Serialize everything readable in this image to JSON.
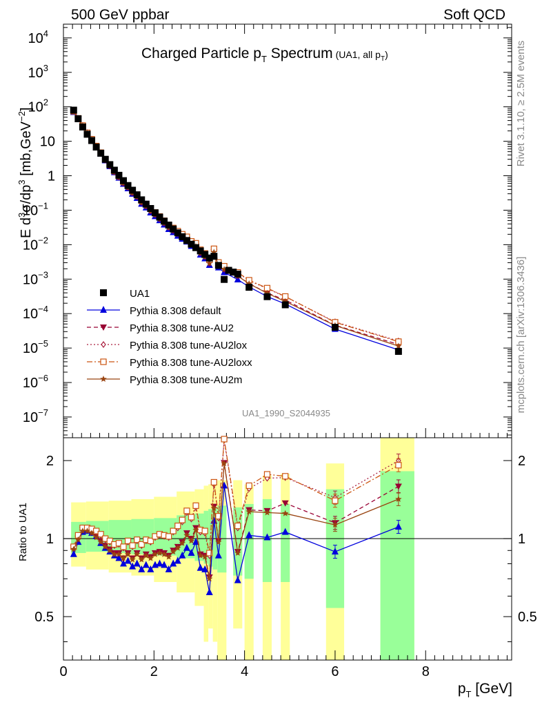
{
  "header": {
    "left": "500 GeV ppbar",
    "right": "Soft QCD",
    "side_top": "Rivet 3.1.10, ≥ 2.5M events",
    "side_bottom": "mcplots.cern.ch [arXiv:1306.3436]"
  },
  "chart_data": [
    {
      "type": "scatter",
      "title": "Charged Particle pT Spectrum",
      "subtitle": "(UA1, all pT)",
      "watermark": "UA1_1990_S2044935",
      "ylabel": "E d3σ/dp3 [mb,GeV-2]",
      "xlim": [
        0,
        9.9
      ],
      "ylim": [
        2.5e-08,
        25000
      ],
      "log_y": true,
      "yticks": [
        {
          "value": 10000.0,
          "label": "10",
          "exp": "4"
        },
        {
          "value": 1000.0,
          "label": "10",
          "exp": "3"
        },
        {
          "value": 100.0,
          "label": "10",
          "exp": "2"
        },
        {
          "value": 10,
          "label": "10",
          "exp": ""
        },
        {
          "value": 1,
          "label": "1",
          "exp": ""
        },
        {
          "value": 0.1,
          "label": "10",
          "exp": "−1"
        },
        {
          "value": 0.01,
          "label": "10",
          "exp": "−2"
        },
        {
          "value": 0.001,
          "label": "10",
          "exp": "−3"
        },
        {
          "value": 0.0001,
          "label": "10",
          "exp": "−4"
        },
        {
          "value": 1e-05,
          "label": "10",
          "exp": "−5"
        },
        {
          "value": 1e-06,
          "label": "10",
          "exp": "−6"
        },
        {
          "value": 1e-07,
          "label": "10",
          "exp": "−7"
        }
      ],
      "legend": {
        "position": "bottom-left",
        "entries": [
          {
            "label": "UA1",
            "color": "#000000",
            "marker": "square",
            "line": "none"
          },
          {
            "label": "Pythia 8.308 default",
            "color": "#0000dd",
            "marker": "triangle-up",
            "line": "solid"
          },
          {
            "label": "Pythia 8.308 tune-AU2",
            "color": "#990033",
            "marker": "triangle-down",
            "line": "dashed"
          },
          {
            "label": "Pythia 8.308 tune-AU2lox",
            "color": "#aa1f3f",
            "marker": "diamond-open",
            "line": "dotted"
          },
          {
            "label": "Pythia 8.308 tune-AU2loxx",
            "color": "#cc5511",
            "marker": "square-open",
            "line": "dashdot"
          },
          {
            "label": "Pythia 8.308 tune-AU2m",
            "color": "#994411",
            "marker": "star",
            "line": "solid"
          }
        ]
      },
      "data_points": [
        [
          0.225,
          80
        ],
        [
          0.325,
          45
        ],
        [
          0.425,
          26
        ],
        [
          0.525,
          16
        ],
        [
          0.625,
          10.5
        ],
        [
          0.725,
          6.8
        ],
        [
          0.825,
          4.5
        ],
        [
          0.925,
          3.0
        ],
        [
          1.025,
          2.1
        ],
        [
          1.125,
          1.45
        ],
        [
          1.225,
          1.03
        ],
        [
          1.325,
          0.72
        ],
        [
          1.425,
          0.52
        ],
        [
          1.525,
          0.38
        ],
        [
          1.625,
          0.28
        ],
        [
          1.725,
          0.2
        ],
        [
          1.825,
          0.15
        ],
        [
          1.925,
          0.112
        ],
        [
          2.025,
          0.084
        ],
        [
          2.125,
          0.063
        ],
        [
          2.225,
          0.048
        ],
        [
          2.325,
          0.037
        ],
        [
          2.425,
          0.0285
        ],
        [
          2.525,
          0.022
        ],
        [
          2.625,
          0.017
        ],
        [
          2.725,
          0.0132
        ],
        [
          2.825,
          0.0103
        ],
        [
          2.925,
          0.0082
        ],
        [
          3.025,
          0.0066
        ],
        [
          3.125,
          0.0052
        ],
        [
          3.225,
          0.0041
        ],
        [
          3.325,
          0.0046
        ],
        [
          3.425,
          0.0025
        ],
        [
          3.55,
          0.00098
        ],
        [
          3.65,
          0.0018
        ],
        [
          3.75,
          0.0016
        ],
        [
          3.85,
          0.0014
        ],
        [
          4.1,
          0.00058
        ],
        [
          4.5,
          0.00031
        ],
        [
          4.9,
          0.00018
        ],
        [
          6.0,
          4e-05
        ],
        [
          7.4,
          8e-06
        ]
      ],
      "ratio_panel": {
        "ylabel": "Ratio to UA1",
        "xlabel": "pT [GeV]",
        "xticks": [
          0,
          2,
          4,
          6,
          8
        ],
        "yticks": [
          0.5,
          1,
          2
        ],
        "ylim": [
          0.34,
          2.45
        ],
        "bands": [
          {
            "x0": 0.17,
            "x1": 0.5,
            "g_lo": 0.88,
            "g_hi": 1.16,
            "y_lo": 0.78,
            "y_hi": 1.38
          },
          {
            "x0": 0.5,
            "x1": 1.0,
            "g_lo": 0.89,
            "g_hi": 1.17,
            "y_lo": 0.76,
            "y_hi": 1.39
          },
          {
            "x0": 1.0,
            "x1": 1.5,
            "g_lo": 0.88,
            "g_hi": 1.18,
            "y_lo": 0.74,
            "y_hi": 1.4
          },
          {
            "x0": 1.5,
            "x1": 2.0,
            "g_lo": 0.87,
            "g_hi": 1.19,
            "y_lo": 0.72,
            "y_hi": 1.42
          },
          {
            "x0": 2.0,
            "x1": 2.5,
            "g_lo": 0.86,
            "g_hi": 1.2,
            "y_lo": 0.68,
            "y_hi": 1.45
          },
          {
            "x0": 2.5,
            "x1": 2.9,
            "g_lo": 0.84,
            "g_hi": 1.23,
            "y_lo": 0.62,
            "y_hi": 1.52
          },
          {
            "x0": 2.9,
            "x1": 3.1,
            "g_lo": 0.82,
            "g_hi": 1.25,
            "y_lo": 0.55,
            "y_hi": 1.55
          },
          {
            "x0": 3.1,
            "x1": 3.2,
            "g_lo": 0.8,
            "g_hi": 1.28,
            "y_lo": 0.4,
            "y_hi": 1.6
          },
          {
            "x0": 3.2,
            "x1": 3.3,
            "g_lo": 0.78,
            "g_hi": 1.3,
            "y_lo": 0.45,
            "y_hi": 1.62
          },
          {
            "x0": 3.3,
            "x1": 3.4,
            "g_lo": 0.76,
            "g_hi": 1.32,
            "y_lo": 0.4,
            "y_hi": 1.65
          },
          {
            "x0": 3.4,
            "x1": 3.6,
            "g_lo": 0.74,
            "g_hi": 1.34,
            "y_lo": 0.34,
            "y_hi": 1.68
          },
          {
            "x0": 3.75,
            "x1": 3.95,
            "g_lo": 0.72,
            "g_hi": 1.32,
            "y_lo": 0.45,
            "y_hi": 1.68
          },
          {
            "x0": 4.0,
            "x1": 4.2,
            "g_lo": 0.7,
            "g_hi": 1.36,
            "y_lo": 0.34,
            "y_hi": 1.62
          },
          {
            "x0": 4.4,
            "x1": 4.6,
            "g_lo": 0.68,
            "g_hi": 1.42,
            "y_lo": 0.34,
            "y_hi": 1.75
          },
          {
            "x0": 4.8,
            "x1": 5.0,
            "g_lo": 0.68,
            "g_hi": 1.36,
            "y_lo": 0.34,
            "y_hi": 1.78
          },
          {
            "x0": 5.8,
            "x1": 6.2,
            "g_lo": 0.54,
            "g_hi": 1.55,
            "y_lo": 0.34,
            "y_hi": 1.95
          },
          {
            "x0": 7.0,
            "x1": 7.75,
            "g_lo": 0.34,
            "g_hi": 1.82,
            "y_lo": 0.34,
            "y_hi": 2.45
          }
        ],
        "x": [
          0.225,
          0.325,
          0.425,
          0.525,
          0.625,
          0.725,
          0.825,
          0.925,
          1.025,
          1.125,
          1.225,
          1.325,
          1.425,
          1.525,
          1.625,
          1.725,
          1.825,
          1.925,
          2.025,
          2.125,
          2.225,
          2.325,
          2.425,
          2.525,
          2.625,
          2.725,
          2.825,
          2.925,
          3.025,
          3.125,
          3.225,
          3.325,
          3.425,
          3.55,
          3.85,
          4.1,
          4.5,
          4.9,
          6.0,
          7.4
        ],
        "series": [
          {
            "name": "Pythia 8.308 default",
            "values": [
              0.87,
              0.97,
              1.06,
              1.07,
              1.05,
              1.02,
              0.96,
              0.92,
              0.89,
              0.86,
              0.84,
              0.8,
              0.82,
              0.78,
              0.8,
              0.76,
              0.79,
              0.76,
              0.79,
              0.8,
              0.79,
              0.76,
              0.8,
              0.82,
              0.86,
              0.92,
              0.88,
              0.97,
              0.77,
              0.76,
              0.62,
              1.17,
              0.86,
              1.6,
              0.69,
              1.03,
              1.01,
              1.06,
              0.89,
              1.11
            ]
          },
          {
            "name": "Pythia 8.308 tune-AU2",
            "values": [
              0.92,
              1.0,
              1.08,
              1.08,
              1.06,
              1.02,
              0.98,
              0.94,
              0.91,
              0.88,
              0.88,
              0.84,
              0.88,
              0.84,
              0.88,
              0.84,
              0.87,
              0.85,
              0.88,
              0.89,
              0.88,
              0.86,
              0.9,
              0.93,
              0.97,
              1.05,
              1.0,
              1.1,
              0.87,
              0.86,
              0.71,
              1.33,
              0.98,
              1.96,
              0.89,
              1.29,
              1.28,
              1.37,
              1.15,
              1.59
            ]
          },
          {
            "name": "Pythia 8.308 tune-AU2lox",
            "values": [
              0.93,
              1.02,
              1.1,
              1.1,
              1.09,
              1.06,
              1.03,
              0.99,
              0.97,
              0.94,
              0.95,
              0.92,
              0.97,
              0.93,
              0.98,
              0.94,
              0.98,
              0.97,
              1.01,
              1.03,
              1.02,
              1.01,
              1.06,
              1.1,
              1.16,
              1.26,
              1.19,
              1.32,
              1.06,
              1.05,
              0.86,
              1.62,
              1.2,
              2.4,
              1.1,
              1.56,
              1.71,
              1.72,
              1.44,
              2.0
            ]
          },
          {
            "name": "Pythia 8.308 tune-AU2loxx",
            "values": [
              0.93,
              1.03,
              1.1,
              1.1,
              1.09,
              1.07,
              1.04,
              1.0,
              0.98,
              0.95,
              0.96,
              0.93,
              0.98,
              0.94,
              0.99,
              0.95,
              0.99,
              0.98,
              1.02,
              1.04,
              1.03,
              1.02,
              1.07,
              1.12,
              1.18,
              1.28,
              1.21,
              1.34,
              1.08,
              1.07,
              0.88,
              1.65,
              1.22,
              2.42,
              1.12,
              1.6,
              1.77,
              1.74,
              1.4,
              1.92
            ]
          },
          {
            "name": "Pythia 8.308 tune-AU2m",
            "values": [
              0.91,
              0.99,
              1.07,
              1.07,
              1.05,
              1.01,
              0.97,
              0.93,
              0.9,
              0.87,
              0.87,
              0.84,
              0.87,
              0.83,
              0.87,
              0.83,
              0.86,
              0.84,
              0.87,
              0.88,
              0.87,
              0.85,
              0.89,
              0.92,
              0.96,
              1.03,
              0.98,
              1.08,
              0.86,
              0.85,
              0.7,
              1.31,
              0.97,
              1.95,
              0.88,
              1.27,
              1.26,
              1.25,
              1.13,
              1.42
            ]
          }
        ]
      }
    }
  ]
}
